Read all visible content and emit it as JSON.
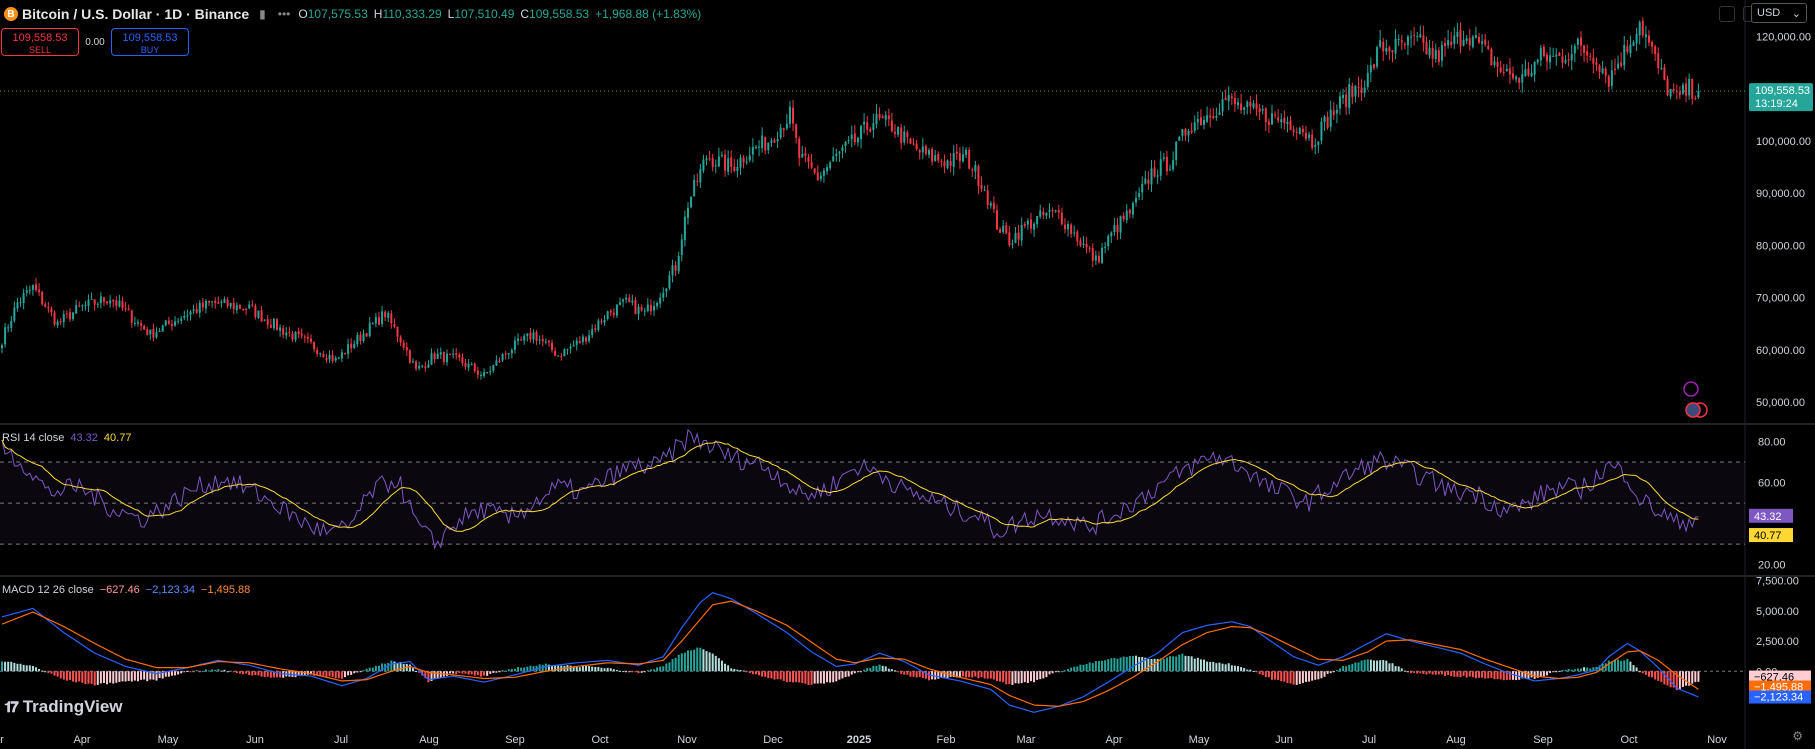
{
  "header": {
    "symbol_badge": "B",
    "title": "Bitcoin / U.S. Dollar · 1D · Binance",
    "ohlc": {
      "o_label": "O",
      "o": "107,575.53",
      "h_label": "H",
      "h": "110,333.29",
      "l_label": "L",
      "l": "107,510.49",
      "c_label": "C",
      "c": "109,558.53",
      "change": "+1,968.88 (+1.83%)"
    }
  },
  "trade": {
    "sell_price": "109,558.53",
    "sell_label": "SELL",
    "spread": "0.00",
    "buy_price": "109,558.53",
    "buy_label": "BUY"
  },
  "currency": "USD",
  "price_axis": {
    "ticks": [
      "120,000.00",
      "110,000.00",
      "100,000.00",
      "90,000.00",
      "80,000.00",
      "70,000.00",
      "60,000.00",
      "50,000.00"
    ],
    "last_price": "109,558.53",
    "countdown": "13:19:24"
  },
  "rsi": {
    "label": "RSI 14 close",
    "value": "43.32",
    "ma": "40.77",
    "ticks": [
      "80.00",
      "60.00",
      "20.00"
    ]
  },
  "macd": {
    "label": "MACD 12 26 close",
    "hist": "−627.46",
    "macd": "−2,123.34",
    "signal": "−1,495.88",
    "ticks": [
      "7,500.00",
      "5,000.00",
      "2,500.00",
      "0.00"
    ]
  },
  "time_axis": [
    "r",
    "Apr",
    "May",
    "Jun",
    "Jul",
    "Aug",
    "Sep",
    "Oct",
    "Nov",
    "Dec",
    "2025",
    "Feb",
    "Mar",
    "Apr",
    "May",
    "Jun",
    "Jul",
    "Aug",
    "Sep",
    "Oct",
    "Nov"
  ],
  "brand": "TradingView",
  "colors": {
    "up": "#26a69a",
    "down": "#f23645",
    "rsi": "#7e57c2",
    "rsi_ma": "#fdd835",
    "macd": "#2962ff",
    "signal": "#ff6d00"
  },
  "chart_data": {
    "type": "candlestick",
    "price_ylim": [
      46000,
      127000
    ],
    "anchors_close": [
      [
        0,
        62000
      ],
      [
        5,
        69000
      ],
      [
        10,
        72000
      ],
      [
        18,
        65000
      ],
      [
        25,
        68000
      ],
      [
        35,
        70000
      ],
      [
        48,
        63000
      ],
      [
        60,
        67000
      ],
      [
        68,
        69000
      ],
      [
        80,
        68000
      ],
      [
        90,
        64000
      ],
      [
        100,
        61000
      ],
      [
        108,
        58000
      ],
      [
        115,
        62000
      ],
      [
        124,
        67000
      ],
      [
        130,
        61000
      ],
      [
        134,
        56000
      ],
      [
        140,
        59000
      ],
      [
        148,
        58000
      ],
      [
        156,
        55000
      ],
      [
        164,
        60000
      ],
      [
        172,
        63000
      ],
      [
        180,
        59000
      ],
      [
        188,
        62000
      ],
      [
        196,
        67000
      ],
      [
        202,
        69000
      ],
      [
        208,
        67000
      ],
      [
        212,
        70000
      ],
      [
        218,
        76000
      ],
      [
        222,
        88000
      ],
      [
        228,
        97000
      ],
      [
        236,
        95000
      ],
      [
        242,
        98000
      ],
      [
        248,
        100000
      ],
      [
        255,
        105000
      ],
      [
        258,
        97000
      ],
      [
        264,
        93000
      ],
      [
        270,
        97000
      ],
      [
        276,
        100000
      ],
      [
        282,
        104000
      ],
      [
        288,
        103000
      ],
      [
        294,
        99000
      ],
      [
        300,
        97000
      ],
      [
        306,
        96000
      ],
      [
        312,
        97000
      ],
      [
        318,
        91000
      ],
      [
        322,
        84000
      ],
      [
        326,
        81000
      ],
      [
        332,
        84000
      ],
      [
        338,
        86000
      ],
      [
        342,
        86000
      ],
      [
        346,
        83000
      ],
      [
        350,
        80000
      ],
      [
        354,
        77000
      ],
      [
        360,
        83000
      ],
      [
        366,
        87000
      ],
      [
        372,
        94000
      ],
      [
        378,
        96000
      ],
      [
        384,
        103000
      ],
      [
        390,
        105000
      ],
      [
        396,
        108000
      ],
      [
        402,
        106000
      ],
      [
        408,
        105000
      ],
      [
        414,
        104000
      ],
      [
        420,
        103000
      ],
      [
        424,
        100000
      ],
      [
        430,
        105000
      ],
      [
        436,
        109000
      ],
      [
        442,
        112000
      ],
      [
        446,
        118000
      ],
      [
        452,
        118000
      ],
      [
        458,
        119000
      ],
      [
        464,
        116000
      ],
      [
        470,
        119000
      ],
      [
        474,
        121000
      ],
      [
        480,
        117000
      ],
      [
        486,
        113000
      ],
      [
        492,
        112000
      ],
      [
        498,
        116000
      ],
      [
        504,
        116000
      ],
      [
        510,
        118000
      ],
      [
        516,
        116000
      ],
      [
        520,
        112000
      ],
      [
        526,
        118000
      ],
      [
        530,
        123000
      ],
      [
        534,
        117000
      ],
      [
        538,
        111000
      ],
      [
        542,
        108000
      ],
      [
        546,
        110000
      ],
      [
        549,
        109558
      ]
    ],
    "rsi_ylim": [
      15,
      88
    ],
    "rsi_anchors": [
      [
        0,
        76
      ],
      [
        8,
        68
      ],
      [
        15,
        55
      ],
      [
        25,
        58
      ],
      [
        35,
        48
      ],
      [
        45,
        42
      ],
      [
        55,
        50
      ],
      [
        62,
        57
      ],
      [
        72,
        62
      ],
      [
        82,
        55
      ],
      [
        90,
        48
      ],
      [
        98,
        40
      ],
      [
        106,
        35
      ],
      [
        112,
        38
      ],
      [
        120,
        56
      ],
      [
        128,
        62
      ],
      [
        134,
        40
      ],
      [
        140,
        30
      ],
      [
        148,
        42
      ],
      [
        156,
        47
      ],
      [
        164,
        42
      ],
      [
        172,
        50
      ],
      [
        180,
        58
      ],
      [
        188,
        55
      ],
      [
        196,
        62
      ],
      [
        204,
        68
      ],
      [
        212,
        68
      ],
      [
        218,
        76
      ],
      [
        222,
        82
      ],
      [
        228,
        79
      ],
      [
        236,
        72
      ],
      [
        244,
        70
      ],
      [
        252,
        63
      ],
      [
        258,
        54
      ],
      [
        264,
        55
      ],
      [
        270,
        60
      ],
      [
        276,
        68
      ],
      [
        284,
        65
      ],
      [
        292,
        56
      ],
      [
        300,
        52
      ],
      [
        308,
        47
      ],
      [
        316,
        44
      ],
      [
        322,
        36
      ],
      [
        328,
        40
      ],
      [
        336,
        45
      ],
      [
        344,
        43
      ],
      [
        352,
        38
      ],
      [
        360,
        45
      ],
      [
        368,
        52
      ],
      [
        376,
        60
      ],
      [
        384,
        67
      ],
      [
        392,
        73
      ],
      [
        398,
        70
      ],
      [
        404,
        65
      ],
      [
        410,
        57
      ],
      [
        416,
        55
      ],
      [
        422,
        50
      ],
      [
        428,
        56
      ],
      [
        434,
        62
      ],
      [
        440,
        67
      ],
      [
        446,
        71
      ],
      [
        452,
        68
      ],
      [
        458,
        64
      ],
      [
        464,
        60
      ],
      [
        470,
        55
      ],
      [
        476,
        56
      ],
      [
        482,
        50
      ],
      [
        488,
        46
      ],
      [
        494,
        50
      ],
      [
        500,
        56
      ],
      [
        506,
        58
      ],
      [
        510,
        56
      ],
      [
        514,
        60
      ],
      [
        520,
        68
      ],
      [
        526,
        64
      ],
      [
        530,
        52
      ],
      [
        536,
        46
      ],
      [
        542,
        40
      ],
      [
        549,
        43.32
      ]
    ],
    "macd_ylim": [
      -4200,
      7800
    ],
    "macd_anchors": [
      [
        0,
        4500
      ],
      [
        10,
        5200
      ],
      [
        20,
        3200
      ],
      [
        30,
        1500
      ],
      [
        40,
        400
      ],
      [
        50,
        -200
      ],
      [
        60,
        300
      ],
      [
        70,
        900
      ],
      [
        80,
        500
      ],
      [
        90,
        -200
      ],
      [
        100,
        -400
      ],
      [
        110,
        -1200
      ],
      [
        118,
        -600
      ],
      [
        126,
        600
      ],
      [
        132,
        800
      ],
      [
        138,
        -700
      ],
      [
        146,
        -400
      ],
      [
        156,
        -900
      ],
      [
        166,
        -300
      ],
      [
        176,
        400
      ],
      [
        186,
        700
      ],
      [
        196,
        900
      ],
      [
        206,
        500
      ],
      [
        214,
        1200
      ],
      [
        220,
        3600
      ],
      [
        226,
        5700
      ],
      [
        230,
        6500
      ],
      [
        236,
        6000
      ],
      [
        244,
        4800
      ],
      [
        254,
        3200
      ],
      [
        262,
        1600
      ],
      [
        270,
        400
      ],
      [
        276,
        600
      ],
      [
        284,
        1500
      ],
      [
        292,
        800
      ],
      [
        300,
        -300
      ],
      [
        310,
        -800
      ],
      [
        320,
        -1500
      ],
      [
        326,
        -2800
      ],
      [
        334,
        -3400
      ],
      [
        342,
        -2900
      ],
      [
        350,
        -2100
      ],
      [
        358,
        -900
      ],
      [
        366,
        400
      ],
      [
        374,
        1500
      ],
      [
        382,
        3200
      ],
      [
        390,
        3800
      ],
      [
        398,
        4100
      ],
      [
        404,
        3700
      ],
      [
        410,
        2600
      ],
      [
        418,
        1200
      ],
      [
        426,
        500
      ],
      [
        434,
        1200
      ],
      [
        442,
        2300
      ],
      [
        448,
        3100
      ],
      [
        456,
        2500
      ],
      [
        464,
        2000
      ],
      [
        472,
        1500
      ],
      [
        480,
        600
      ],
      [
        488,
        -200
      ],
      [
        496,
        -800
      ],
      [
        504,
        -600
      ],
      [
        510,
        -300
      ],
      [
        516,
        100
      ],
      [
        520,
        1200
      ],
      [
        526,
        2300
      ],
      [
        530,
        1700
      ],
      [
        536,
        300
      ],
      [
        542,
        -1400
      ],
      [
        549,
        -2123
      ]
    ],
    "signal_anchors": [
      [
        0,
        3900
      ],
      [
        10,
        4900
      ],
      [
        20,
        3700
      ],
      [
        30,
        2300
      ],
      [
        40,
        1000
      ],
      [
        50,
        300
      ],
      [
        60,
        300
      ],
      [
        70,
        800
      ],
      [
        80,
        700
      ],
      [
        90,
        200
      ],
      [
        100,
        -200
      ],
      [
        110,
        -800
      ],
      [
        118,
        -700
      ],
      [
        126,
        0
      ],
      [
        132,
        400
      ],
      [
        138,
        -100
      ],
      [
        146,
        -300
      ],
      [
        156,
        -600
      ],
      [
        166,
        -500
      ],
      [
        176,
        0
      ],
      [
        186,
        400
      ],
      [
        196,
        700
      ],
      [
        206,
        600
      ],
      [
        214,
        900
      ],
      [
        220,
        2500
      ],
      [
        226,
        4300
      ],
      [
        230,
        5500
      ],
      [
        236,
        5800
      ],
      [
        244,
        5000
      ],
      [
        254,
        3800
      ],
      [
        262,
        2400
      ],
      [
        270,
        1000
      ],
      [
        276,
        700
      ],
      [
        284,
        1100
      ],
      [
        292,
        1000
      ],
      [
        300,
        200
      ],
      [
        310,
        -500
      ],
      [
        320,
        -1100
      ],
      [
        326,
        -2000
      ],
      [
        334,
        -2800
      ],
      [
        342,
        -2900
      ],
      [
        350,
        -2500
      ],
      [
        358,
        -1600
      ],
      [
        366,
        -500
      ],
      [
        374,
        800
      ],
      [
        382,
        2200
      ],
      [
        390,
        3200
      ],
      [
        398,
        3700
      ],
      [
        404,
        3600
      ],
      [
        410,
        3000
      ],
      [
        418,
        2000
      ],
      [
        426,
        1000
      ],
      [
        434,
        900
      ],
      [
        442,
        1600
      ],
      [
        448,
        2500
      ],
      [
        456,
        2600
      ],
      [
        464,
        2200
      ],
      [
        472,
        1800
      ],
      [
        480,
        1000
      ],
      [
        488,
        300
      ],
      [
        496,
        -400
      ],
      [
        504,
        -600
      ],
      [
        510,
        -500
      ],
      [
        516,
        -100
      ],
      [
        520,
        600
      ],
      [
        526,
        1600
      ],
      [
        530,
        1700
      ],
      [
        536,
        900
      ],
      [
        542,
        -300
      ],
      [
        549,
        -1496
      ]
    ]
  }
}
